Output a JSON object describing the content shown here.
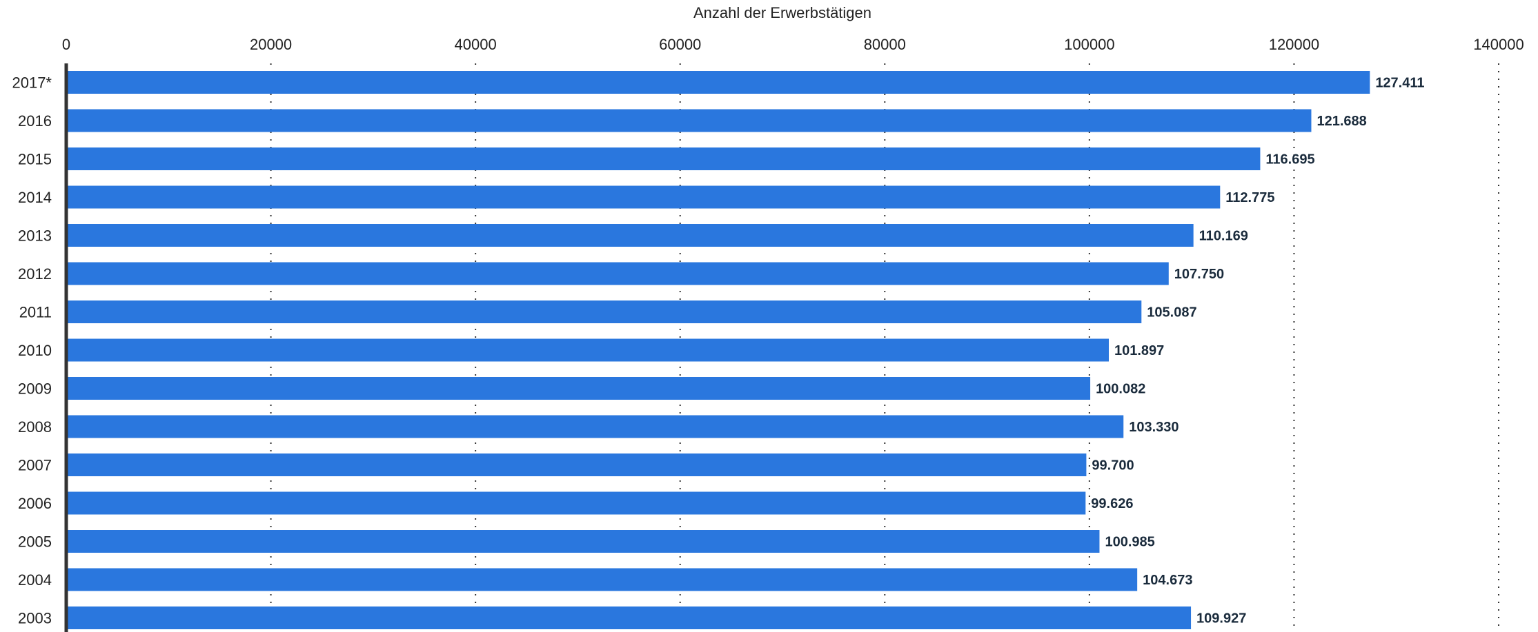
{
  "chart_data": {
    "type": "bar",
    "orientation": "horizontal",
    "xlabel": "Anzahl der Erwerbstätigen",
    "xlim": [
      0,
      140000
    ],
    "x_ticks": [
      "0",
      "20000",
      "40000",
      "60000",
      "80000",
      "100000",
      "120000",
      "140000"
    ],
    "x_tick_values": [
      0,
      20000,
      40000,
      60000,
      80000,
      100000,
      120000,
      140000
    ],
    "grid": "vertical-dotted",
    "x_axis_position": "top",
    "bar_color": "#2a77de",
    "categories": [
      "2017*",
      "2016",
      "2015",
      "2014",
      "2013",
      "2012",
      "2011",
      "2010",
      "2009",
      "2008",
      "2007",
      "2006",
      "2005",
      "2004",
      "2003"
    ],
    "values": [
      127411,
      121688,
      116695,
      112775,
      110169,
      107750,
      105087,
      101897,
      100082,
      103330,
      99700,
      99626,
      100985,
      104673,
      109927
    ],
    "data_labels": [
      "127.411",
      "121.688",
      "116.695",
      "112.775",
      "110.169",
      "107.750",
      "105.087",
      "101.897",
      "100.082",
      "103.330",
      "99.700",
      "99.626",
      "100.985",
      "104.673",
      "109.927"
    ]
  }
}
